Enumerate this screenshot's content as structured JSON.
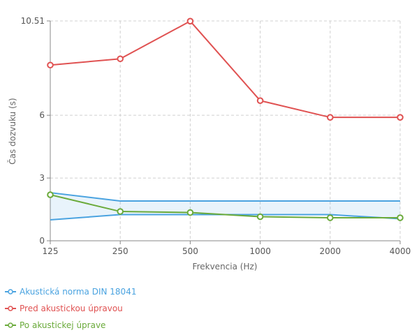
{
  "chart_data": {
    "type": "line",
    "x": [
      "125",
      "250",
      "500",
      "1000",
      "2000",
      "4000"
    ],
    "xlabel": "Frekvencia (Hz)",
    "ylabel": "Čas dozvuku (s)",
    "ylim": [
      0,
      10.51
    ],
    "yticks": [
      0,
      3,
      6,
      10.51
    ],
    "ytick_labels": [
      "0",
      "3",
      "6",
      "10.51"
    ],
    "grid": true,
    "legend_position": "bottom-left",
    "band": {
      "name": "Akustická norma DIN 18041",
      "color": "#4aa3e0",
      "upper": [
        2.3,
        1.9,
        1.9,
        1.9,
        1.9,
        1.9
      ],
      "lower": [
        1.0,
        1.25,
        1.25,
        1.25,
        1.25,
        1.05
      ]
    },
    "series": [
      {
        "name": "Pred akustickou úpravou",
        "color": "#e05252",
        "values": [
          8.4,
          8.7,
          10.5,
          6.7,
          5.9,
          5.9
        ]
      },
      {
        "name": "Po akustickej úprave",
        "color": "#6aaa3a",
        "values": [
          2.2,
          1.4,
          1.35,
          1.15,
          1.1,
          1.1
        ]
      }
    ]
  },
  "legend": [
    {
      "label": "Akustická norma DIN 18041",
      "color": "#4aa3e0"
    },
    {
      "label": "Pred akustickou úpravou",
      "color": "#e05252"
    },
    {
      "label": "Po akustickej úprave",
      "color": "#6aaa3a"
    }
  ]
}
